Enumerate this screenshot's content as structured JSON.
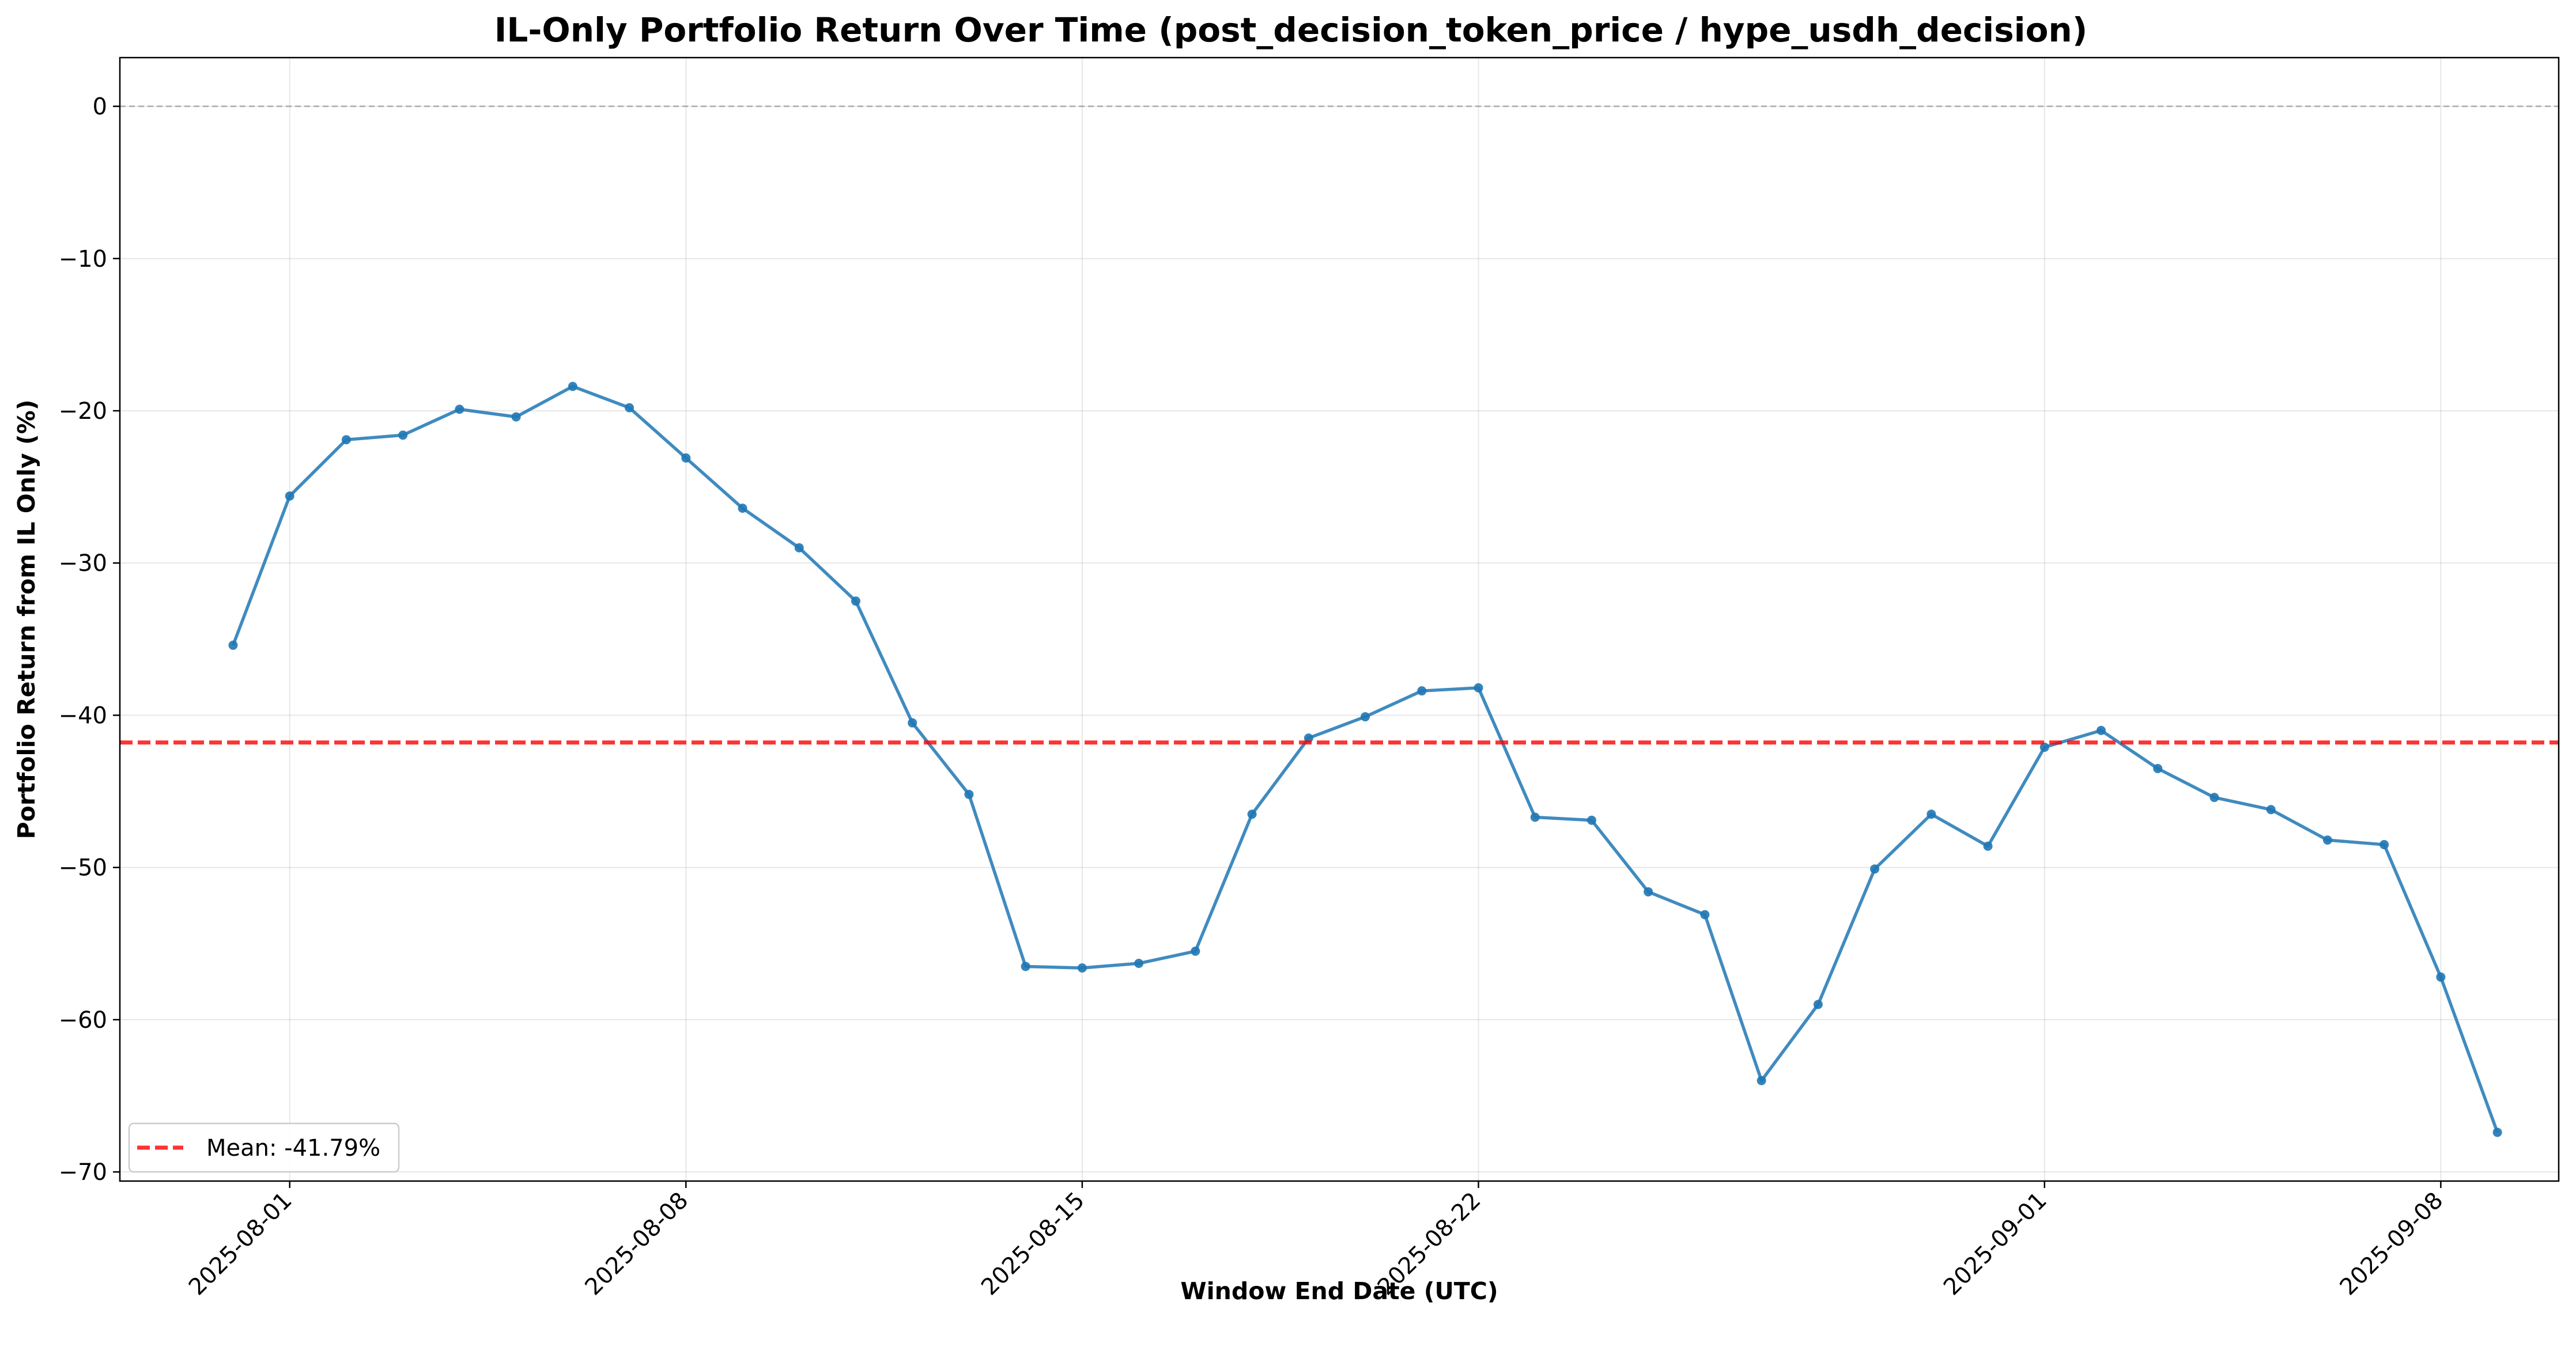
{
  "chart_data": {
    "type": "line",
    "title": "IL-Only Portfolio Return Over Time (post_decision_token_price / hype_usdh_decision)",
    "xlabel": "Window End Date (UTC)",
    "ylabel": "Portfolio Return from IL Only (%)",
    "xlim": [
      "2025-07-29T00:00",
      "2025-09-10T02:00"
    ],
    "ylim": [
      -70.6,
      3.2
    ],
    "xticks": [
      "2025-08-01",
      "2025-08-08",
      "2025-08-15",
      "2025-08-22",
      "2025-09-01",
      "2025-09-08"
    ],
    "yticks": [
      0,
      -10,
      -20,
      -30,
      -40,
      -50,
      -60,
      -70
    ],
    "ytick_labels": [
      "0",
      "−10",
      "−20",
      "−30",
      "−40",
      "−50",
      "−60",
      "−70"
    ],
    "grid": true,
    "zero_reference_line": 0,
    "series": [
      {
        "color": "#1f77b4",
        "points": [
          [
            "2025-07-31",
            -35.4
          ],
          [
            "2025-08-01",
            -25.6
          ],
          [
            "2025-08-02",
            -21.9
          ],
          [
            "2025-08-03",
            -21.6
          ],
          [
            "2025-08-04",
            -19.9
          ],
          [
            "2025-08-05",
            -20.4
          ],
          [
            "2025-08-06",
            -18.4
          ],
          [
            "2025-08-07",
            -19.8
          ],
          [
            "2025-08-08",
            -23.1
          ],
          [
            "2025-08-09",
            -26.4
          ],
          [
            "2025-08-10",
            -29.0
          ],
          [
            "2025-08-11",
            -32.5
          ],
          [
            "2025-08-12",
            -40.5
          ],
          [
            "2025-08-13",
            -45.2
          ],
          [
            "2025-08-14",
            -56.5
          ],
          [
            "2025-08-15",
            -56.6
          ],
          [
            "2025-08-16",
            -56.3
          ],
          [
            "2025-08-17",
            -55.5
          ],
          [
            "2025-08-18",
            -46.5
          ],
          [
            "2025-08-19",
            -41.5
          ],
          [
            "2025-08-20",
            -40.1
          ],
          [
            "2025-08-21",
            -38.4
          ],
          [
            "2025-08-22",
            -38.2
          ],
          [
            "2025-08-23",
            -46.7
          ],
          [
            "2025-08-24",
            -46.9
          ],
          [
            "2025-08-25",
            -51.6
          ],
          [
            "2025-08-26",
            -53.1
          ],
          [
            "2025-08-27",
            -64.0
          ],
          [
            "2025-08-28",
            -59.0
          ],
          [
            "2025-08-29",
            -50.1
          ],
          [
            "2025-08-30",
            -46.5
          ],
          [
            "2025-08-31",
            -48.6
          ],
          [
            "2025-09-01",
            -42.1
          ],
          [
            "2025-09-02",
            -41.0
          ],
          [
            "2025-09-03",
            -43.5
          ],
          [
            "2025-09-04",
            -45.4
          ],
          [
            "2025-09-05",
            -46.2
          ],
          [
            "2025-09-06",
            -48.2
          ],
          [
            "2025-09-07",
            -48.5
          ],
          [
            "2025-09-08",
            -57.2
          ],
          [
            "2025-09-09",
            -67.4
          ]
        ]
      }
    ],
    "mean_line": {
      "value": -41.79,
      "color": "#ff0000",
      "label": "Mean: -41.79%"
    },
    "legend": {
      "location": "lower-left"
    }
  }
}
